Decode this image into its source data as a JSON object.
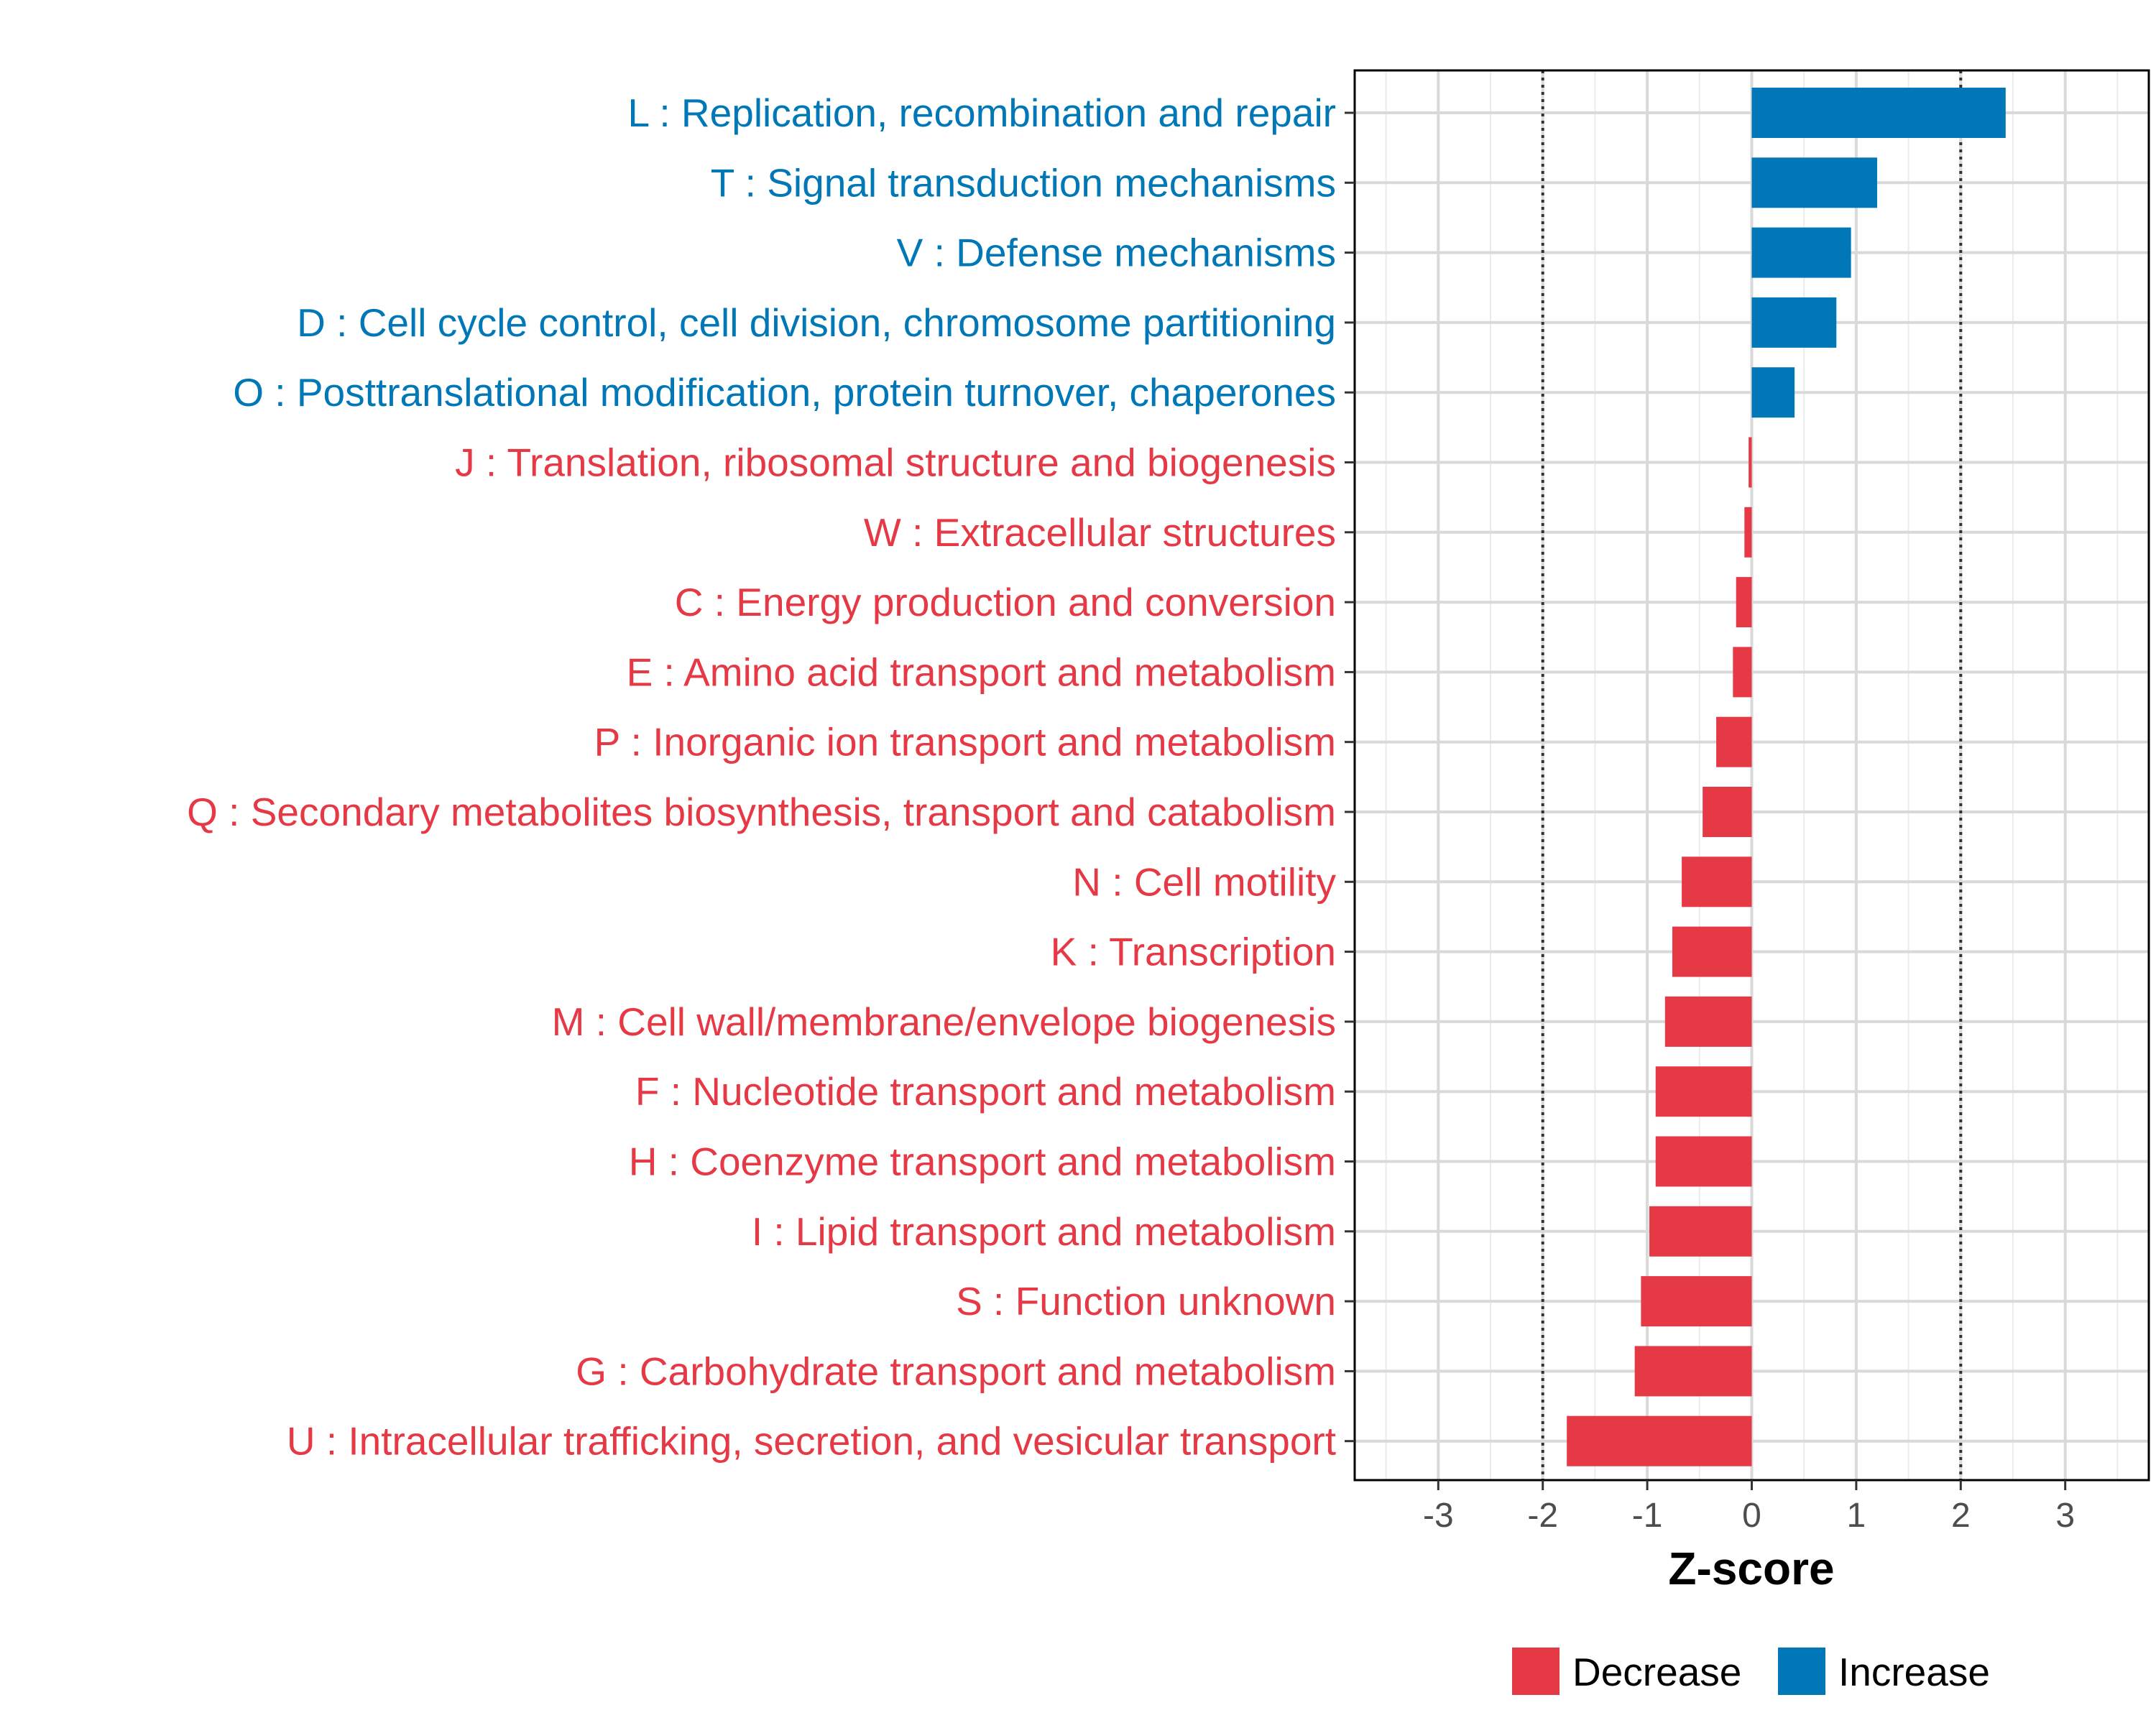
{
  "chart_data": {
    "type": "bar",
    "orientation": "horizontal",
    "xlabel": "Z-score",
    "ylabel": "",
    "xlim": [
      -3.8,
      3.8
    ],
    "xticks": [
      -3,
      -2,
      -1,
      0,
      1,
      2,
      3
    ],
    "xtick_labels": [
      "-3",
      "-2",
      "-1",
      "0",
      "1",
      "2",
      "3"
    ],
    "reference_lines": [
      -2,
      2
    ],
    "grid": true,
    "legend_position": "bottom",
    "colors": {
      "Decrease": "#e63946",
      "Increase": "#0077b6"
    },
    "legend": [
      {
        "label": "Decrease",
        "group": "Decrease"
      },
      {
        "label": "Increase",
        "group": "Increase"
      }
    ],
    "categories": [
      "L : Replication, recombination and repair",
      "T : Signal transduction mechanisms",
      "V : Defense mechanisms",
      "D : Cell cycle control, cell division, chromosome partitioning",
      "O : Posttranslational modification, protein turnover, chaperones",
      "J : Translation, ribosomal structure and biogenesis",
      "W : Extracellular structures",
      "C : Energy production and conversion",
      "E : Amino acid transport and metabolism",
      "P : Inorganic ion transport and metabolism",
      "Q : Secondary metabolites biosynthesis, transport and catabolism",
      "N : Cell motility",
      "K : Transcription",
      "M : Cell wall/membrane/envelope biogenesis",
      "F : Nucleotide transport and metabolism",
      "H : Coenzyme transport and metabolism",
      "I : Lipid transport and metabolism",
      "S : Function unknown",
      "G : Carbohydrate transport and metabolism",
      "U : Intracellular trafficking, secretion, and vesicular transport"
    ],
    "values": [
      2.43,
      1.2,
      0.95,
      0.81,
      0.41,
      -0.03,
      -0.07,
      -0.15,
      -0.18,
      -0.34,
      -0.47,
      -0.67,
      -0.76,
      -0.83,
      -0.92,
      -0.92,
      -0.98,
      -1.06,
      -1.12,
      -1.77
    ],
    "groups": [
      "Increase",
      "Increase",
      "Increase",
      "Increase",
      "Increase",
      "Decrease",
      "Decrease",
      "Decrease",
      "Decrease",
      "Decrease",
      "Decrease",
      "Decrease",
      "Decrease",
      "Decrease",
      "Decrease",
      "Decrease",
      "Decrease",
      "Decrease",
      "Decrease",
      "Decrease"
    ]
  }
}
